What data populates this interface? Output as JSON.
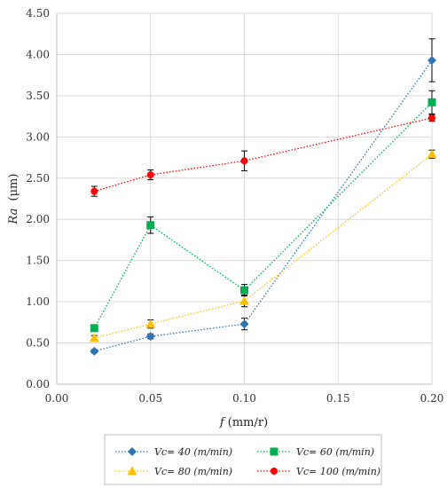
{
  "chart_data": {
    "type": "line",
    "xlabel_var": "f",
    "xlabel_unit": "(mm/r)",
    "ylabel_var": "Ra",
    "ylabel_unit": "(μm)",
    "xlim": [
      0.0,
      0.2
    ],
    "ylim": [
      0.0,
      4.5
    ],
    "xticks": [
      "0.00",
      "0.05",
      "0.10",
      "0.15",
      "0.20"
    ],
    "yticks": [
      "0.00",
      "0.50",
      "1.00",
      "1.50",
      "2.00",
      "2.50",
      "3.00",
      "3.50",
      "4.00",
      "4.50"
    ],
    "grid": true,
    "legend_position": "bottom",
    "x": [
      0.02,
      0.05,
      0.1,
      0.2
    ],
    "series": [
      {
        "name_prefix": "Vc",
        "name_rest": "= 40 (m/min)",
        "color": "#2e75b6",
        "marker": "diamond",
        "values": [
          0.4,
          0.58,
          0.73,
          3.93
        ],
        "errors": [
          0.02,
          0.03,
          0.07,
          0.26
        ]
      },
      {
        "name_prefix": "Vc",
        "name_rest": "= 60 (m/min)",
        "color": "#00b050",
        "marker": "square",
        "values": [
          0.68,
          1.93,
          1.14,
          3.42
        ],
        "errors": [
          0.03,
          0.1,
          0.07,
          0.14
        ]
      },
      {
        "name_prefix": "Vc",
        "name_rest": "= 80 (m/min)",
        "color": "#ffc000",
        "marker": "triangle",
        "values": [
          0.56,
          0.73,
          1.01,
          2.79
        ],
        "errors": [
          0.03,
          0.05,
          0.07,
          0.05
        ]
      },
      {
        "name_prefix": "Vc",
        "name_rest": "= 100 (m/min)",
        "color": "#ff0000",
        "marker": "circle",
        "values": [
          2.34,
          2.54,
          2.71,
          3.23
        ],
        "errors": [
          0.06,
          0.06,
          0.12,
          0.04
        ]
      }
    ]
  }
}
